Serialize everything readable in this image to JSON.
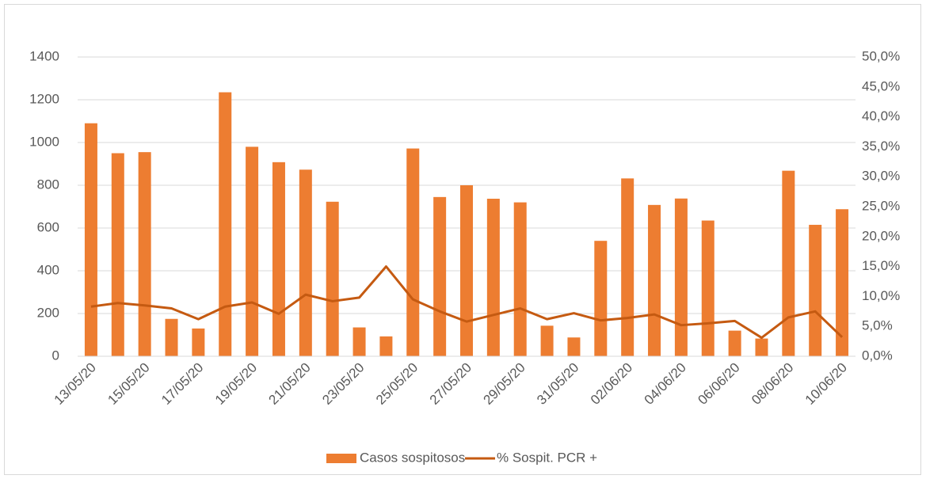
{
  "chart_data": {
    "type": "bar-line",
    "categories": [
      "13/05/20",
      null,
      "15/05/20",
      null,
      "17/05/20",
      null,
      "19/05/20",
      null,
      "21/05/20",
      null,
      "23/05/20",
      null,
      "25/05/20",
      null,
      "27/05/20",
      null,
      "29/05/20",
      null,
      "31/05/20",
      null,
      "02/06/20",
      null,
      "04/06/20",
      null,
      "06/06/20",
      null,
      "08/06/20",
      null,
      "10/06/20"
    ],
    "series": [
      {
        "name": "Casos sospitosos",
        "type": "bar",
        "color": "#ed7d31",
        "values": [
          1090,
          950,
          955,
          175,
          130,
          1235,
          980,
          908,
          873,
          723,
          135,
          93,
          972,
          745,
          800,
          737,
          720,
          143,
          88,
          540,
          832,
          708,
          738,
          635,
          120,
          83,
          868,
          615,
          688
        ]
      },
      {
        "name": "% Sospit. PCR +",
        "type": "line",
        "axis": "y2",
        "color": "#c55a11",
        "values": [
          8.3,
          8.9,
          8.5,
          8.0,
          6.2,
          8.3,
          9.0,
          7.1,
          10.3,
          9.2,
          9.8,
          15.0,
          9.5,
          7.5,
          5.8,
          6.9,
          8.0,
          6.2,
          7.2,
          6.0,
          6.4,
          7.0,
          5.2,
          5.5,
          5.9,
          3.1,
          6.5,
          7.5,
          3.2
        ]
      }
    ],
    "ylim": [
      0,
      1400
    ],
    "yticks": [
      0,
      200,
      400,
      600,
      800,
      1000,
      1200,
      1400
    ],
    "y2lim": [
      0,
      50
    ],
    "y2ticks": [
      {
        "value": 0,
        "label": "0,0%"
      },
      {
        "value": 5,
        "label": "5,0%"
      },
      {
        "value": 10,
        "label": "10,0%"
      },
      {
        "value": 15,
        "label": "15,0%"
      },
      {
        "value": 20,
        "label": "20,0%"
      },
      {
        "value": 25,
        "label": "25,0%"
      },
      {
        "value": 30,
        "label": "30,0%"
      },
      {
        "value": 35,
        "label": "35,0%"
      },
      {
        "value": 40,
        "label": "40,0%"
      },
      {
        "value": 45,
        "label": "45,0%"
      },
      {
        "value": 50,
        "label": "50,0%"
      }
    ],
    "grid": true,
    "legend": "bottom"
  }
}
